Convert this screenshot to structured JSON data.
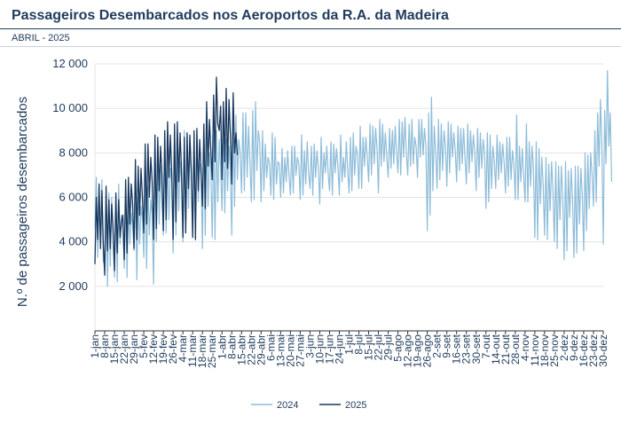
{
  "header": {
    "title": "Passageiros Desembarcados nos Aeroportos da R.A. da Madeira",
    "subtitle": "ABRIL - 2025"
  },
  "colors": {
    "title": "#1f3b5c",
    "series_2024": "#8dbcd9",
    "series_2025": "#17375e",
    "grid": "#e3e3e3"
  },
  "chart_data": {
    "type": "line",
    "title": "Passageiros Desembarcados nos Aeroportos da R.A. da Madeira",
    "subtitle": "ABRIL - 2025",
    "xlabel": "",
    "ylabel": "N.º de passageiros desembarcados",
    "ylim": [
      0,
      12000
    ],
    "yticks": [
      2000,
      4000,
      6000,
      8000,
      10000,
      12000
    ],
    "ytick_labels": [
      "2 000",
      "4 000",
      "6 000",
      "8 000",
      "10 000",
      "12 000"
    ],
    "xlim": [
      1,
      365
    ],
    "x_tick_days": [
      1,
      8,
      15,
      22,
      29,
      36,
      43,
      50,
      57,
      64,
      71,
      78,
      85,
      92,
      99,
      106,
      113,
      120,
      127,
      134,
      141,
      148,
      155,
      162,
      169,
      176,
      183,
      190,
      197,
      204,
      211,
      218,
      225,
      232,
      239,
      246,
      253,
      260,
      267,
      274,
      281,
      288,
      295,
      302,
      309,
      316,
      323,
      330,
      337,
      344,
      351,
      358,
      365
    ],
    "x_tick_labels": [
      "1-jan",
      "8-jan",
      "15-jan",
      "22-jan",
      "29-jan",
      "5-fev",
      "12-fev",
      "19-fev",
      "26-fev",
      "4-mar",
      "11-mar",
      "18-mar",
      "25-mar",
      "1-abr",
      "8-abr",
      "15-abr",
      "22-abr",
      "29-abr",
      "6-mai",
      "13-mai",
      "20-mai",
      "27-mai",
      "3-jun",
      "10-jun",
      "17-jun",
      "24-jun",
      "1-jul",
      "8-jul",
      "15-jul",
      "22-jul",
      "29-jul",
      "5-ago",
      "12-ago",
      "19-ago",
      "26-ago",
      "2-set",
      "9-set",
      "16-set",
      "23-set",
      "30-set",
      "7-out",
      "14-out",
      "21-out",
      "28-out",
      "4-nov",
      "11-nov",
      "18-nov",
      "25-nov",
      "2-dez",
      "9-dez",
      "16-dez",
      "23-dez",
      "30-dez"
    ],
    "legend_position": "bottom-center",
    "grid": true,
    "series": [
      {
        "name": "2024",
        "color": "#8dbcd9",
        "x_start": 1,
        "values": [
          4600,
          6900,
          3300,
          5800,
          4000,
          6800,
          3100,
          3000,
          5600,
          2000,
          6200,
          2900,
          6000,
          4100,
          2400,
          5600,
          2200,
          6600,
          3900,
          5200,
          4600,
          2800,
          6400,
          2400,
          5800,
          3900,
          5300,
          4700,
          3600,
          6800,
          2300,
          6000,
          3900,
          5600,
          5000,
          3300,
          7000,
          2800,
          6500,
          4300,
          5900,
          5200,
          2100,
          7800,
          4000,
          8600,
          4800,
          7400,
          5800,
          4300,
          8300,
          4400,
          8200,
          5000,
          7300,
          6700,
          3500,
          8800,
          4300,
          8200,
          5400,
          7600,
          6700,
          4000,
          9000,
          4400,
          8500,
          5500,
          8300,
          6900,
          4200,
          8700,
          4500,
          8800,
          5800,
          7500,
          7000,
          3700,
          9000,
          4300,
          8700,
          5600,
          8000,
          7200,
          4200,
          8800,
          4100,
          9000,
          5800,
          8600,
          7300,
          5400,
          9300,
          5300,
          8600,
          6300,
          8300,
          7200,
          4300,
          10200,
          5600,
          9700,
          6800,
          8600,
          8000,
          6200,
          9800,
          6300,
          9800,
          6900,
          9200,
          7600,
          5800,
          9900,
          5900,
          10300,
          7200,
          9000,
          8500,
          5800,
          9000,
          6300,
          8400,
          6900,
          7800,
          7500,
          6100,
          8900,
          5900,
          8700,
          6600,
          7600,
          7500,
          6000,
          8200,
          6200,
          7800,
          6700,
          8100,
          7000,
          6100,
          8300,
          6200,
          8300,
          7000,
          7800,
          7500,
          5900,
          8800,
          6100,
          8100,
          6600,
          8500,
          7100,
          6400,
          8300,
          6100,
          8400,
          6900,
          8100,
          7300,
          5700,
          8700,
          6400,
          8000,
          7100,
          8300,
          7100,
          6300,
          8500,
          6100,
          8400,
          7100,
          8200,
          7400,
          6100,
          8800,
          6700,
          7800,
          6900,
          8500,
          7200,
          6200,
          8700,
          6300,
          8900,
          7000,
          8300,
          7900,
          6400,
          9200,
          6400,
          8700,
          7400,
          8700,
          7800,
          6700,
          9300,
          7000,
          9200,
          7500,
          9100,
          8200,
          6200,
          9500,
          7400,
          9300,
          7600,
          8900,
          7800,
          6900,
          9100,
          7300,
          9000,
          7500,
          9200,
          8000,
          7100,
          9500,
          7000,
          9400,
          7800,
          9600,
          8000,
          7000,
          9300,
          7400,
          9500,
          7500,
          8700,
          8300,
          6900,
          9500,
          7800,
          9500,
          7900,
          9100,
          8300,
          4500,
          9800,
          5200,
          10500,
          6300,
          9200,
          8000,
          6400,
          9500,
          6800,
          9300,
          7200,
          9000,
          8300,
          6500,
          9400,
          7100,
          9300,
          7800,
          8900,
          8100,
          6700,
          9200,
          7200,
          9100,
          7500,
          9100,
          7800,
          6600,
          9300,
          7100,
          9000,
          7600,
          8800,
          8000,
          6300,
          9100,
          6900,
          8900,
          7300,
          8600,
          8000,
          5500,
          8900,
          5800,
          8800,
          6400,
          8300,
          7600,
          6400,
          8800,
          6800,
          8500,
          7100,
          8400,
          7600,
          6200,
          8700,
          6500,
          8700,
          6800,
          8100,
          7500,
          5900,
          9700,
          5900,
          8300,
          6700,
          8200,
          7000,
          5800,
          9300,
          5800,
          8500,
          6500,
          8300,
          7300,
          4200,
          8500,
          4100,
          8200,
          5700,
          7800,
          6500,
          4300,
          7800,
          4100,
          7500,
          5400,
          7600,
          6300,
          4000,
          7600,
          3700,
          7400,
          5000,
          7400,
          5900,
          3200,
          7600,
          3600,
          7200,
          5100,
          7300,
          5900,
          3300,
          7400,
          3500,
          7400,
          4800,
          7300,
          6100,
          3600,
          8000,
          4500,
          7900,
          5500,
          8000,
          7000,
          5600,
          9000,
          5800,
          9800,
          7400,
          10400,
          8300,
          3900,
          9900,
          7500,
          11700,
          8300,
          9800,
          6700
        ]
      },
      {
        "name": "2025",
        "color": "#17375e",
        "x_start": 1,
        "values": [
          3000,
          6000,
          4100,
          6600,
          3700,
          6300,
          3900,
          2500,
          6500,
          3600,
          5900,
          3700,
          5700,
          4600,
          2700,
          6200,
          3500,
          5900,
          4200,
          4900,
          5200,
          3200,
          6800,
          3500,
          6900,
          4800,
          6600,
          5700,
          3700,
          7700,
          4100,
          7400,
          5200,
          7300,
          6000,
          4400,
          8400,
          4800,
          8400,
          6000,
          7800,
          6700,
          4100,
          8800,
          4600,
          8700,
          6300,
          8300,
          7000,
          4500,
          9000,
          5000,
          9400,
          6900,
          8800,
          7100,
          4100,
          9300,
          4900,
          9400,
          6700,
          8900,
          7200,
          4200,
          8700,
          4400,
          8900,
          6400,
          8800,
          7200,
          4200,
          9000,
          4100,
          9100,
          6300,
          8600,
          7200,
          5600,
          9300,
          5500,
          10300,
          7400,
          9500,
          8100,
          6800,
          10600,
          7600,
          11400,
          9300,
          9000,
          10100,
          6800,
          10300,
          7600,
          10900,
          7300,
          10400,
          8800,
          6600,
          10700,
          8000,
          8900,
          7900
        ]
      }
    ]
  }
}
